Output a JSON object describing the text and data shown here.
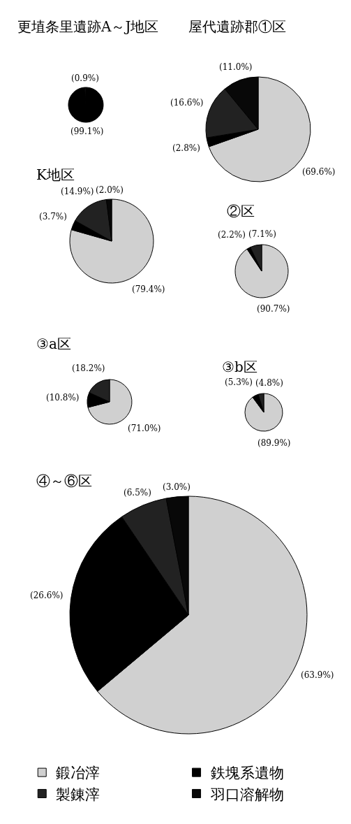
{
  "chart_data": [
    {
      "type": "pie",
      "title": "更埴条里遺跡A～J地区",
      "categories": [
        null,
        null
      ],
      "values": [
        99.1,
        0.9
      ],
      "colors": [
        "#000000",
        "#222222"
      ],
      "value_labels": [
        "(99.1%)",
        "(0.9%)"
      ]
    },
    {
      "type": "pie",
      "title": "屋代遺跡郡①区",
      "categories": [
        null,
        null,
        null,
        null
      ],
      "values": [
        69.6,
        2.8,
        16.6,
        11.0
      ],
      "colors": [
        "#d0d0d0",
        "#000000",
        "#222222",
        "#080808"
      ],
      "value_labels": [
        "(69.6%)",
        "(2.8%)",
        "(16.6%)",
        "(11.0%)"
      ]
    },
    {
      "type": "pie",
      "title": "K地区",
      "categories": [
        null,
        null,
        null,
        null
      ],
      "values": [
        79.4,
        3.7,
        14.9,
        2.0
      ],
      "colors": [
        "#d0d0d0",
        "#000000",
        "#222222",
        "#080808"
      ],
      "value_labels": [
        "(79.4%)",
        "(3.7%)",
        "(14.9%)",
        "(2.0%)"
      ]
    },
    {
      "type": "pie",
      "title": "②区",
      "categories": [
        null,
        null,
        null
      ],
      "values": [
        90.7,
        2.2,
        7.1
      ],
      "colors": [
        "#d0d0d0",
        "#000000",
        "#222222"
      ],
      "value_labels": [
        "(90.7%)",
        "(2.2%)",
        "(7.1%)"
      ]
    },
    {
      "type": "pie",
      "title": "③a区",
      "categories": [
        null,
        null,
        null
      ],
      "values": [
        71.0,
        10.8,
        18.2
      ],
      "colors": [
        "#d0d0d0",
        "#000000",
        "#222222"
      ],
      "value_labels": [
        "(71.0%)",
        "(10.8%)",
        "(18.2%)"
      ]
    },
    {
      "type": "pie",
      "title": "③b区",
      "categories": [
        null,
        null,
        null
      ],
      "values": [
        89.9,
        5.3,
        4.8
      ],
      "colors": [
        "#d0d0d0",
        "#000000",
        "#222222"
      ],
      "value_labels": [
        "(89.9%)",
        "(5.3%)",
        "(4.8%)"
      ]
    },
    {
      "type": "pie",
      "title": "④～⑥区",
      "categories": [
        "鍛冶滓",
        "鉄塊系遺物",
        "製錬滓",
        "羽口溶解物"
      ],
      "values": [
        63.9,
        26.6,
        6.5,
        3.0
      ],
      "colors": [
        "#d0d0d0",
        "#000000",
        "#222222",
        "#080808"
      ],
      "value_labels": [
        "(63.9%)",
        "(26.6%)",
        "(6.5%)",
        "(3.0%)"
      ],
      "legend": "bottom"
    }
  ]
}
